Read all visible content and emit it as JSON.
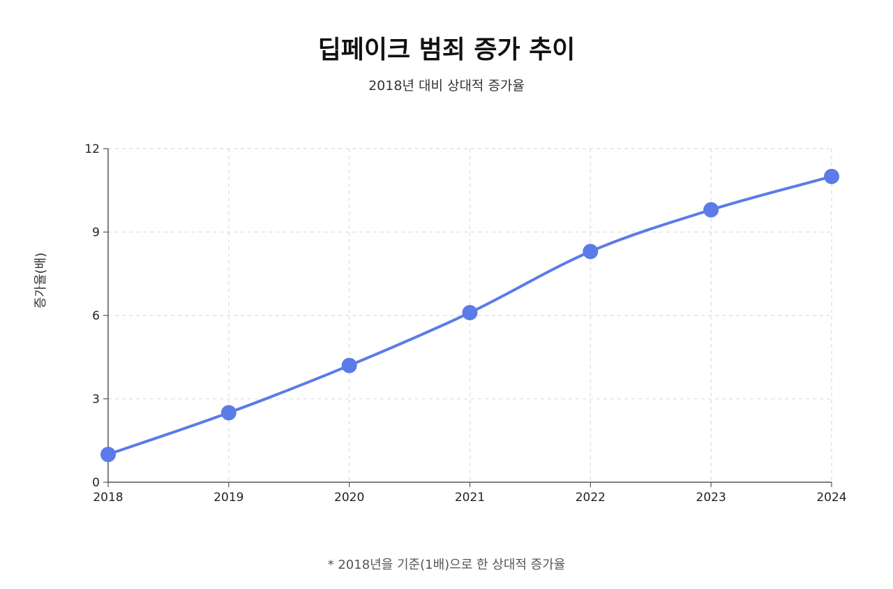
{
  "chart_data": {
    "type": "line",
    "title": "딥페이크 범죄 증가 추이",
    "subtitle": "2018년 대비 상대적 증가율",
    "xlabel": "",
    "ylabel": "증가율(배)",
    "categories": [
      "2018",
      "2019",
      "2020",
      "2021",
      "2022",
      "2023",
      "2024"
    ],
    "series": [
      {
        "values": [
          1.0,
          2.5,
          4.2,
          6.1,
          8.3,
          9.8,
          11.0
        ]
      }
    ],
    "ylim": [
      0,
      12
    ],
    "yticks": [
      0,
      3,
      6,
      9,
      12
    ],
    "grid": true,
    "line_color": "#5b7be8",
    "grid_color": "#e2e2e2",
    "axis_color": "#555555",
    "footnote": "* 2018년을 기준(1배)으로 한 상대적 증가율"
  }
}
